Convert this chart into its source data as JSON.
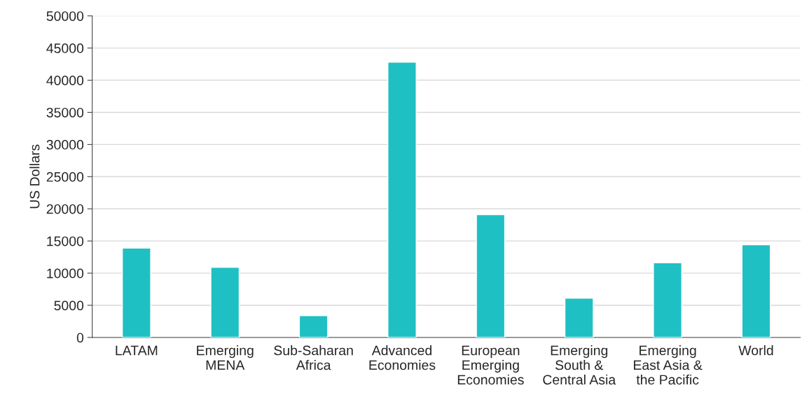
{
  "chart_data": {
    "type": "bar",
    "ylabel": "US Dollars",
    "categories": [
      "LATAM",
      "Emerging\nMENA",
      "Sub-Saharan\nAfrica",
      "Advanced\nEconomies",
      "European\nEmerging\nEconomies",
      "Emerging\nSouth &\nCentral Asia",
      "Emerging\nEast Asia &\nthe Pacific",
      "World"
    ],
    "values": [
      13900,
      10900,
      3400,
      42800,
      19100,
      6100,
      11600,
      14400
    ],
    "color": "#1fc0c3",
    "ylim": [
      0,
      50000
    ],
    "yticks": [
      0,
      5000,
      10000,
      15000,
      20000,
      25000,
      30000,
      35000,
      40000,
      45000,
      50000
    ],
    "grid": "y",
    "legend": false
  }
}
